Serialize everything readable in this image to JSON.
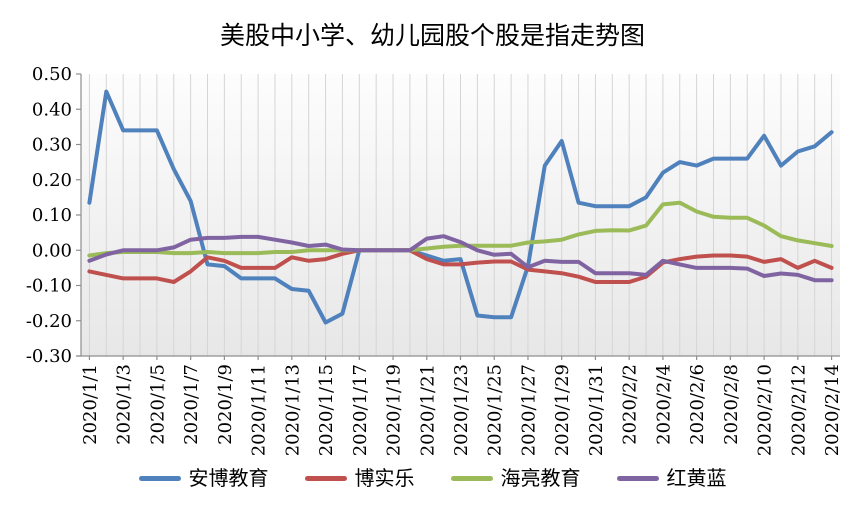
{
  "title": "美股中小学、幼儿园股个股是指走势图",
  "style": {
    "axis_color": "#8E8E8E",
    "gridline_color": "#D5D5D5",
    "plot_bg_top": "#FDFDFD",
    "plot_bg_bottom": "#E7E7E7",
    "text_color": "#000000"
  },
  "chart_data": {
    "type": "line",
    "title": "美股中小学、幼儿园股个股是指走势图",
    "xlabel": "",
    "ylabel": "",
    "grid": "vertical-only",
    "legend_position": "bottom",
    "ylim": [
      -0.3,
      0.5
    ],
    "y_ticks": [
      0.5,
      0.4,
      0.3,
      0.2,
      0.1,
      0.0,
      -0.1,
      -0.2,
      -0.3
    ],
    "y_tick_labels": [
      "0.50",
      "0.40",
      "0.30",
      "0.20",
      "0.10",
      "0.00",
      "-0.10",
      "-0.20",
      "-0.30"
    ],
    "x_label_every": 2,
    "x": [
      "2020/1/1",
      "2020/1/2",
      "2020/1/3",
      "2020/1/4",
      "2020/1/5",
      "2020/1/6",
      "2020/1/7",
      "2020/1/8",
      "2020/1/9",
      "2020/1/10",
      "2020/1/11",
      "2020/1/12",
      "2020/1/13",
      "2020/1/14",
      "2020/1/15",
      "2020/1/16",
      "2020/1/17",
      "2020/1/18",
      "2020/1/19",
      "2020/1/20",
      "2020/1/21",
      "2020/1/22",
      "2020/1/23",
      "2020/1/24",
      "2020/1/25",
      "2020/1/26",
      "2020/1/27",
      "2020/1/28",
      "2020/1/29",
      "2020/1/30",
      "2020/1/31",
      "2020/2/1",
      "2020/2/2",
      "2020/2/3",
      "2020/2/4",
      "2020/2/5",
      "2020/2/6",
      "2020/2/7",
      "2020/2/8",
      "2020/2/9",
      "2020/2/10",
      "2020/2/11",
      "2020/2/12",
      "2020/2/13",
      "2020/2/14"
    ],
    "series": [
      {
        "name": "安博教育",
        "color": "#4F81BD",
        "values": [
          0.135,
          0.45,
          0.34,
          0.34,
          0.34,
          0.23,
          0.14,
          -0.04,
          -0.045,
          -0.08,
          -0.08,
          -0.08,
          -0.11,
          -0.115,
          -0.205,
          -0.18,
          0,
          0,
          0,
          0,
          -0.015,
          -0.03,
          -0.025,
          -0.185,
          -0.19,
          -0.19,
          -0.045,
          0.24,
          0.31,
          0.135,
          0.125,
          0.125,
          0.125,
          0.15,
          0.22,
          0.25,
          0.24,
          0.26,
          0.26,
          0.26,
          0.325,
          0.24,
          0.28,
          0.295,
          0.335
        ]
      },
      {
        "name": "博实乐",
        "color": "#C0504D",
        "values": [
          -0.06,
          -0.07,
          -0.08,
          -0.08,
          -0.08,
          -0.09,
          -0.06,
          -0.02,
          -0.03,
          -0.05,
          -0.05,
          -0.05,
          -0.02,
          -0.03,
          -0.025,
          -0.01,
          0,
          0,
          0,
          0,
          -0.025,
          -0.04,
          -0.04,
          -0.035,
          -0.032,
          -0.032,
          -0.055,
          -0.06,
          -0.065,
          -0.075,
          -0.09,
          -0.09,
          -0.09,
          -0.075,
          -0.035,
          -0.025,
          -0.018,
          -0.015,
          -0.015,
          -0.018,
          -0.033,
          -0.025,
          -0.05,
          -0.03,
          -0.05
        ]
      },
      {
        "name": "海亮教育",
        "color": "#9BBB59",
        "values": [
          -0.015,
          -0.008,
          -0.005,
          -0.005,
          -0.005,
          -0.008,
          -0.008,
          -0.005,
          -0.008,
          -0.008,
          -0.008,
          -0.005,
          -0.005,
          0,
          0,
          0,
          0,
          0,
          0,
          0,
          0.005,
          0.01,
          0.013,
          0.013,
          0.013,
          0.013,
          0.022,
          0.025,
          0.03,
          0.045,
          0.055,
          0.057,
          0.056,
          0.07,
          0.13,
          0.135,
          0.11,
          0.095,
          0.092,
          0.092,
          0.07,
          0.04,
          0.028,
          0.02,
          0.012
        ]
      },
      {
        "name": "红黄蓝",
        "color": "#8064A2",
        "values": [
          -0.03,
          -0.012,
          0,
          0,
          0,
          0.008,
          0.03,
          0.035,
          0.035,
          0.038,
          0.038,
          0.03,
          0.022,
          0.012,
          0.016,
          0.002,
          0,
          0,
          0,
          0,
          0.033,
          0.04,
          0.023,
          0,
          -0.013,
          -0.01,
          -0.048,
          -0.03,
          -0.033,
          -0.033,
          -0.065,
          -0.065,
          -0.065,
          -0.07,
          -0.03,
          -0.04,
          -0.05,
          -0.05,
          -0.05,
          -0.052,
          -0.073,
          -0.066,
          -0.07,
          -0.085,
          -0.085
        ]
      }
    ]
  }
}
